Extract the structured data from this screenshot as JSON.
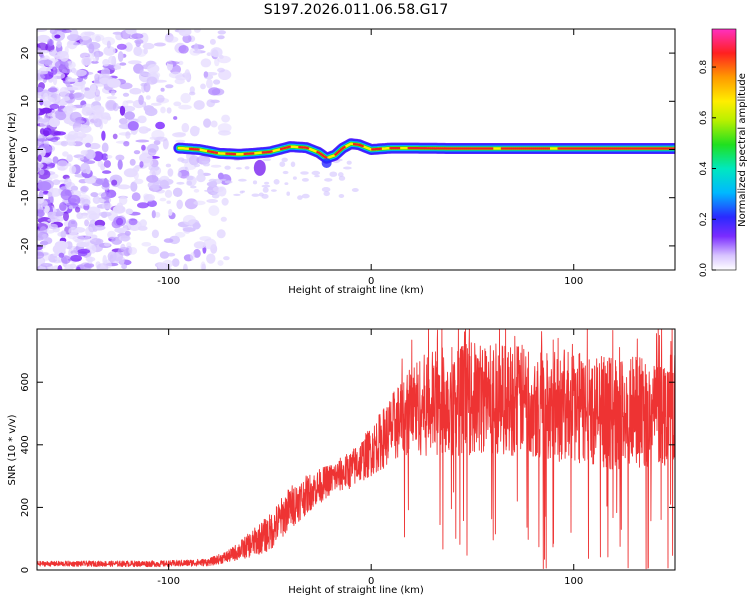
{
  "title": "S197.2026.011.06.58.G17",
  "chart_data": [
    {
      "type": "heatmap",
      "title": "S197.2026.011.06.58.G17",
      "xlabel": "Height of straight line (km)",
      "ylabel": "Frequency (Hz)",
      "xlim": [
        -165,
        150
      ],
      "ylim": [
        -25,
        25
      ],
      "xticks": [
        -100,
        0,
        100
      ],
      "yticks": [
        -20,
        -10,
        0,
        10,
        20
      ],
      "colorbar": {
        "label": "Normalized spectral amplitude",
        "range": [
          0,
          0.95
        ],
        "ticks": [
          0.0,
          0.2,
          0.4,
          0.6,
          0.8
        ],
        "tick_labels": [
          "0.0",
          "0.2",
          "0.4",
          "0.6",
          "0.8"
        ]
      },
      "features": {
        "noise_region_x": [
          -165,
          -80
        ],
        "line_start_x": -95,
        "line_center_freq": [
          [
            -95,
            0.3
          ],
          [
            -85,
            0.0
          ],
          [
            -75,
            -0.8
          ],
          [
            -65,
            -1.0
          ],
          [
            -58,
            -0.8
          ],
          [
            -50,
            -0.5
          ],
          [
            -40,
            0.6
          ],
          [
            -32,
            0.4
          ],
          [
            -26,
            -0.6
          ],
          [
            -22,
            -1.8
          ],
          [
            -18,
            -1.2
          ],
          [
            -14,
            0.3
          ],
          [
            -10,
            1.2
          ],
          [
            -6,
            1.0
          ],
          [
            0,
            0.0
          ],
          [
            10,
            0.3
          ],
          [
            20,
            0.3
          ],
          [
            40,
            0.2
          ],
          [
            80,
            0.2
          ],
          [
            120,
            0.2
          ],
          [
            150,
            0.2
          ]
        ]
      }
    },
    {
      "type": "line",
      "xlabel": "Height of straight line (km)",
      "ylabel": "SNR (10 * v/v)",
      "xlim": [
        -165,
        150
      ],
      "ylim": [
        0,
        770
      ],
      "xticks": [
        -100,
        0,
        100
      ],
      "yticks": [
        0,
        200,
        400,
        600
      ],
      "series": [
        {
          "name": "SNR",
          "color": "#ee3333",
          "envelope_x": [
            -165,
            -100,
            -80,
            -70,
            -60,
            -50,
            -40,
            -30,
            -20,
            -10,
            0,
            10,
            20,
            30,
            40,
            60,
            80,
            100,
            120,
            150
          ],
          "envelope_mean": [
            20,
            20,
            25,
            45,
            80,
            120,
            200,
            250,
            290,
            320,
            380,
            450,
            520,
            530,
            545,
            550,
            540,
            520,
            500,
            510
          ],
          "envelope_spread": [
            8,
            10,
            12,
            20,
            40,
            60,
            70,
            60,
            50,
            60,
            80,
            110,
            150,
            170,
            180,
            180,
            180,
            180,
            180,
            180
          ]
        }
      ]
    }
  ],
  "colors": {
    "line": "#ee3333",
    "noise": "#8a3cff",
    "axis": "#000000"
  }
}
